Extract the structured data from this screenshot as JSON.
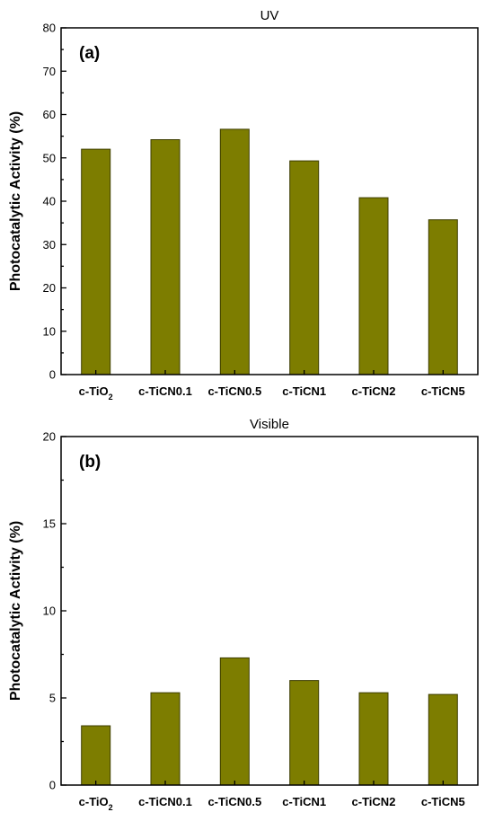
{
  "chart_data": [
    {
      "type": "bar",
      "title": "UV",
      "panel_label": "(a)",
      "ylabel": "Photocatalytic Activity (%)",
      "xlabel": "",
      "categories": [
        "c-TiO",
        "c-TiCN0.1",
        "c-TiCN0.5",
        "c-TiCN1",
        "c-TiCN2",
        "c-TiCN5"
      ],
      "category_subscripts": [
        "2",
        "",
        "",
        "",
        "",
        ""
      ],
      "values": [
        52,
        54.2,
        56.6,
        49.3,
        40.8,
        35.7
      ],
      "ylim": [
        0,
        80
      ],
      "yticks": [
        0,
        10,
        20,
        30,
        40,
        50,
        60,
        70,
        80
      ],
      "bar_color": "#7d7d00",
      "grid": false
    },
    {
      "type": "bar",
      "title": "Visible",
      "panel_label": "(b)",
      "ylabel": "Photocatalytic Activity (%)",
      "xlabel": "",
      "categories": [
        "c-TiO",
        "c-TiCN0.1",
        "c-TiCN0.5",
        "c-TiCN1",
        "c-TiCN2",
        "c-TiCN5"
      ],
      "category_subscripts": [
        "2",
        "",
        "",
        "",
        "",
        ""
      ],
      "values": [
        3.4,
        5.3,
        7.3,
        6.0,
        5.3,
        5.2
      ],
      "ylim": [
        0,
        20
      ],
      "yticks": [
        0,
        5,
        10,
        15,
        20
      ],
      "bar_color": "#7d7d00",
      "grid": false
    }
  ]
}
